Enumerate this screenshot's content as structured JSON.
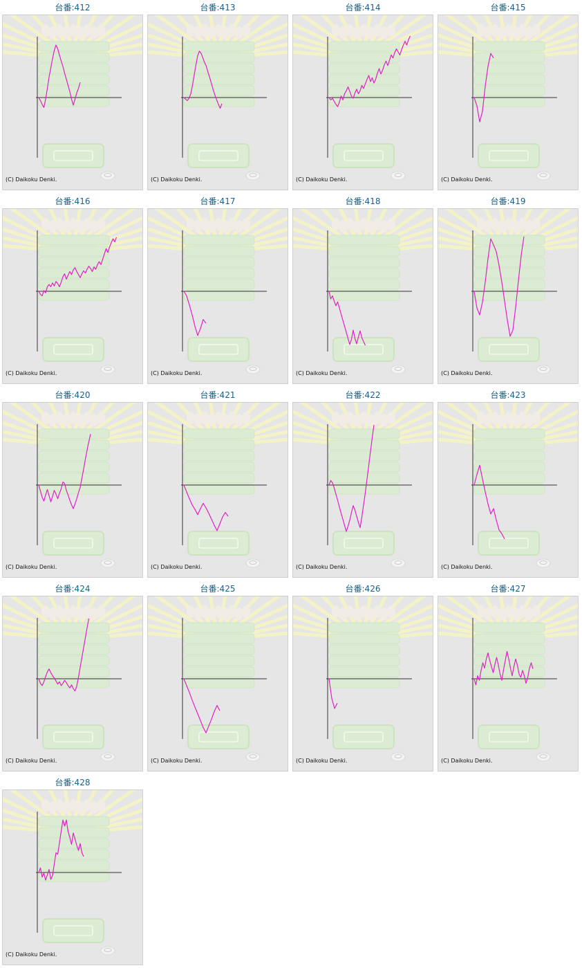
{
  "page": {
    "accent_color": "#1a5f8a",
    "line_color": "#e020c8"
  },
  "machines": [
    {
      "title": "台番:412",
      "copyright": "(C) Daikoku Denki.",
      "series": [
        0,
        -0.4,
        -0.9,
        -1.3,
        -0.2,
        1.2,
        2.7,
        3.9,
        5.1,
        6.2,
        6.9,
        6.4,
        5.6,
        4.8,
        4.1,
        3.2,
        2.4,
        1.6,
        0.8,
        -0.2,
        -1.0,
        -0.2,
        0.6,
        1.2,
        2.0
      ]
    },
    {
      "title": "台番:413",
      "copyright": "(C) Daikoku Denki.",
      "series": [
        0,
        -0.2,
        -0.4,
        -0.1,
        0.5,
        1.6,
        3.0,
        4.3,
        5.5,
        6.1,
        5.8,
        5.2,
        4.6,
        4.1,
        3.3,
        2.6,
        1.8,
        1.0,
        0.3,
        -0.3,
        -0.9,
        -1.4,
        -0.8
      ]
    },
    {
      "title": "台番:414",
      "copyright": "(C) Daikoku Denki.",
      "series": [
        0,
        -0.3,
        -0.1,
        -0.5,
        -0.9,
        -1.2,
        -0.6,
        0.2,
        -0.3,
        0.5,
        0.9,
        1.4,
        0.8,
        0.2,
        -0.1,
        0.6,
        1.1,
        0.5,
        0.9,
        1.6,
        1.2,
        1.8,
        2.4,
        2.9,
        2.1,
        2.6,
        1.9,
        2.4,
        3.2,
        3.8,
        3.1,
        3.6,
        4.3,
        4.8,
        4.2,
        4.9,
        5.6,
        5.2,
        5.9,
        6.4,
        6.0,
        5.6,
        6.3,
        6.9,
        7.4,
        6.9,
        7.6,
        8.1
      ]
    },
    {
      "title": "台番:415",
      "copyright": "(C) Daikoku Denki.",
      "series": [
        0,
        -1.1,
        -3.2,
        -1.8,
        1.5,
        4.1,
        5.8,
        5.2
      ]
    },
    {
      "title": "台番:416",
      "copyright": "(C) Daikoku Denki.",
      "series": [
        0,
        -0.4,
        -0.6,
        0.1,
        -0.2,
        0.6,
        0.9,
        0.6,
        1.1,
        0.7,
        1.3,
        1.0,
        0.6,
        1.2,
        1.9,
        2.3,
        1.6,
        2.1,
        2.6,
        2.2,
        2.8,
        3.1,
        2.6,
        2.2,
        1.8,
        2.3,
        2.7,
        2.4,
        2.9,
        3.3,
        3.0,
        2.6,
        3.2,
        2.9,
        3.5,
        3.9,
        3.5,
        4.2,
        4.9,
        5.6,
        5.1,
        5.8,
        6.4,
        6.9,
        6.5,
        7.1
      ]
    },
    {
      "title": "台番:417",
      "copyright": "(C) Daikoku Denki.",
      "series": [
        0,
        -0.6,
        -1.8,
        -3.1,
        -4.6,
        -5.8,
        -4.9,
        -3.7,
        -4.2
      ]
    },
    {
      "title": "台番:418",
      "copyright": "(C) Daikoku Denki.",
      "series": [
        0,
        -1.0,
        -0.6,
        -1.3,
        -1.9,
        -1.4,
        -2.2,
        -3.0,
        -3.8,
        -4.6,
        -5.4,
        -6.2,
        -7.0,
        -6.3,
        -5.1,
        -6.2,
        -6.9,
        -6.0,
        -5.2,
        -6.1,
        -6.6,
        -7.1
      ]
    },
    {
      "title": "台番:419",
      "copyright": "(C) Daikoku Denki.",
      "series": [
        0,
        -2.2,
        -3.1,
        -1.4,
        1.2,
        4.3,
        6.9,
        6.1,
        5.2,
        3.4,
        1.2,
        -1.3,
        -3.8,
        -5.9,
        -5.1,
        -2.1,
        1.4,
        4.7,
        7.2
      ]
    },
    {
      "title": "台番:420",
      "copyright": "(C) Daikoku Denki.",
      "series": [
        0,
        -0.8,
        -1.6,
        -2.1,
        -1.3,
        -0.6,
        -1.4,
        -2.2,
        -1.5,
        -0.7,
        -1.2,
        -1.8,
        -1.1,
        -0.5,
        0.4,
        0.2,
        -0.7,
        -1.3,
        -2.0,
        -2.6,
        -3.1,
        -2.5,
        -1.8,
        -1.0,
        -0.3,
        0.9,
        2.1,
        3.4,
        4.6,
        5.7,
        6.7
      ]
    },
    {
      "title": "台番:421",
      "copyright": "(C) Daikoku Denki.",
      "series": [
        0,
        -0.9,
        -1.8,
        -2.6,
        -3.2,
        -3.9,
        -3.1,
        -2.4,
        -3.0,
        -3.7,
        -4.5,
        -5.3,
        -6.0,
        -5.1,
        -4.2,
        -3.6,
        -4.1
      ]
    },
    {
      "title": "台番:422",
      "copyright": "(C) Daikoku Denki.",
      "series": [
        0,
        0.6,
        0.3,
        -0.4,
        -1.2,
        -2.0,
        -2.9,
        -3.7,
        -4.5,
        -5.3,
        -6.1,
        -5.4,
        -4.6,
        -3.6,
        -2.7,
        -3.3,
        -4.1,
        -4.9,
        -5.6,
        -4.2,
        -2.6,
        -1.0,
        0.8,
        2.6,
        4.4,
        6.2,
        7.9
      ]
    },
    {
      "title": "台番:423",
      "copyright": "(C) Daikoku Denki.",
      "series": [
        0,
        1.4,
        2.6,
        0.8,
        -0.9,
        -2.5,
        -3.8,
        -3.1,
        -4.6,
        -5.9,
        -6.4,
        -7.1
      ]
    },
    {
      "title": "台番:424",
      "copyright": "(C) Daikoku Denki.",
      "series": [
        0,
        -0.6,
        -0.9,
        -0.4,
        0.3,
        0.9,
        1.3,
        0.8,
        0.4,
        0.1,
        -0.3,
        -0.7,
        -0.4,
        -0.9,
        -0.6,
        -0.2,
        -0.5,
        -0.9,
        -1.2,
        -0.8,
        -1.3,
        -1.6,
        -1.0,
        0.2,
        1.5,
        2.8,
        4.1,
        5.4,
        6.7,
        7.9
      ]
    },
    {
      "title": "台番:425",
      "copyright": "(C) Daikoku Denki.",
      "series": [
        0,
        -0.9,
        -1.8,
        -2.8,
        -3.7,
        -4.6,
        -5.5,
        -6.4,
        -7.1,
        -6.2,
        -5.3,
        -4.3,
        -3.5,
        -4.2
      ]
    },
    {
      "title": "台番:426",
      "copyright": "(C) Daikoku Denki.",
      "series": [
        0,
        -2.6,
        -3.9,
        -3.2
      ]
    },
    {
      "title": "台番:427",
      "copyright": "(C) Daikoku Denki.",
      "series": [
        0,
        -0.8,
        0.4,
        -0.2,
        1.1,
        2.1,
        1.4,
        2.6,
        3.4,
        2.4,
        1.6,
        0.8,
        1.9,
        2.8,
        1.8,
        0.6,
        -0.2,
        1.2,
        2.4,
        3.6,
        2.6,
        1.4,
        0.4,
        1.6,
        2.6,
        1.8,
        0.6,
        0.2,
        1.1,
        0.4,
        -0.6,
        0.2,
        1.4,
        2.1,
        1.3
      ]
    },
    {
      "title": "台番:428",
      "copyright": "(C) Daikoku Denki.",
      "series": [
        0,
        0.6,
        -0.6,
        -0.1,
        -1.0,
        -0.3,
        0.4,
        -0.9,
        -0.4,
        1.1,
        2.6,
        2.4,
        3.9,
        5.4,
        6.9,
        6.1,
        6.9,
        5.4,
        4.6,
        3.7,
        5.2,
        4.4,
        3.6,
        2.9,
        3.8,
        2.6,
        2.1
      ]
    }
  ]
}
